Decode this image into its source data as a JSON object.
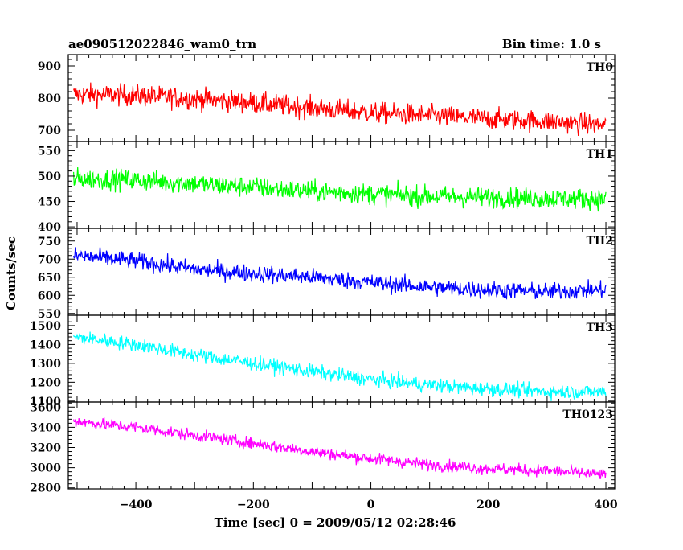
{
  "header": {
    "title": "ae090512022846_wam0_trn",
    "bin_time": "Bin time: 1.0 s"
  },
  "chart_data": {
    "type": "line",
    "title": "ae090512022846_wam0_trn",
    "subtitle": "Bin time: 1.0 s",
    "xlabel": "Time [sec] 0 = 2009/05/12 02:28:46",
    "ylabel": "Counts/sec",
    "xlim": [
      -515,
      415
    ],
    "x_ticks": [
      -400,
      -200,
      0,
      200,
      400
    ],
    "x_range": [
      -506,
      400
    ],
    "bin_time_s": 1.0,
    "grid": false,
    "panels": [
      {
        "name": "TH0",
        "color": "#ff0000",
        "ylim": [
          665,
          935
        ],
        "y_ticks": [
          700,
          800,
          900
        ],
        "trend_t": [
          -506,
          -400,
          -300,
          -200,
          -100,
          0,
          100,
          200,
          300,
          400
        ],
        "trend_y": [
          812,
          808,
          798,
          785,
          770,
          755,
          745,
          735,
          728,
          715
        ],
        "noise_amp": 42
      },
      {
        "name": "TH1",
        "color": "#00ff00",
        "ylim": [
          397,
          568
        ],
        "y_ticks": [
          400,
          450,
          500,
          550
        ],
        "trend_t": [
          -506,
          -400,
          -300,
          -200,
          -100,
          0,
          100,
          200,
          300,
          400
        ],
        "trend_y": [
          495,
          492,
          485,
          478,
          470,
          465,
          460,
          458,
          456,
          455
        ],
        "noise_amp": 26
      },
      {
        "name": "TH2",
        "color": "#0000ff",
        "ylim": [
          545,
          785
        ],
        "y_ticks": [
          550,
          600,
          650,
          700,
          750
        ],
        "trend_t": [
          -506,
          -400,
          -300,
          -200,
          -100,
          0,
          100,
          200,
          300,
          400
        ],
        "trend_y": [
          710,
          695,
          672,
          660,
          650,
          635,
          622,
          615,
          610,
          615
        ],
        "noise_amp": 30
      },
      {
        "name": "TH3",
        "color": "#00ffff",
        "ylim": [
          1095,
          1555
        ],
        "y_ticks": [
          1100,
          1200,
          1300,
          1400,
          1500
        ],
        "trend_t": [
          -506,
          -400,
          -300,
          -200,
          -100,
          0,
          100,
          200,
          300,
          400
        ],
        "trend_y": [
          1440,
          1400,
          1345,
          1300,
          1255,
          1215,
          1185,
          1165,
          1150,
          1150
        ],
        "noise_amp": 48
      },
      {
        "name": "TH0123",
        "color": "#ff00ff",
        "ylim": [
          2790,
          3650
        ],
        "y_ticks": [
          2800,
          3000,
          3200,
          3400,
          3600
        ],
        "trend_t": [
          -506,
          -400,
          -300,
          -200,
          -100,
          0,
          100,
          200,
          300,
          400
        ],
        "trend_y": [
          3460,
          3400,
          3320,
          3240,
          3160,
          3090,
          3030,
          2990,
          2970,
          2930
        ],
        "noise_amp": 75
      }
    ]
  }
}
